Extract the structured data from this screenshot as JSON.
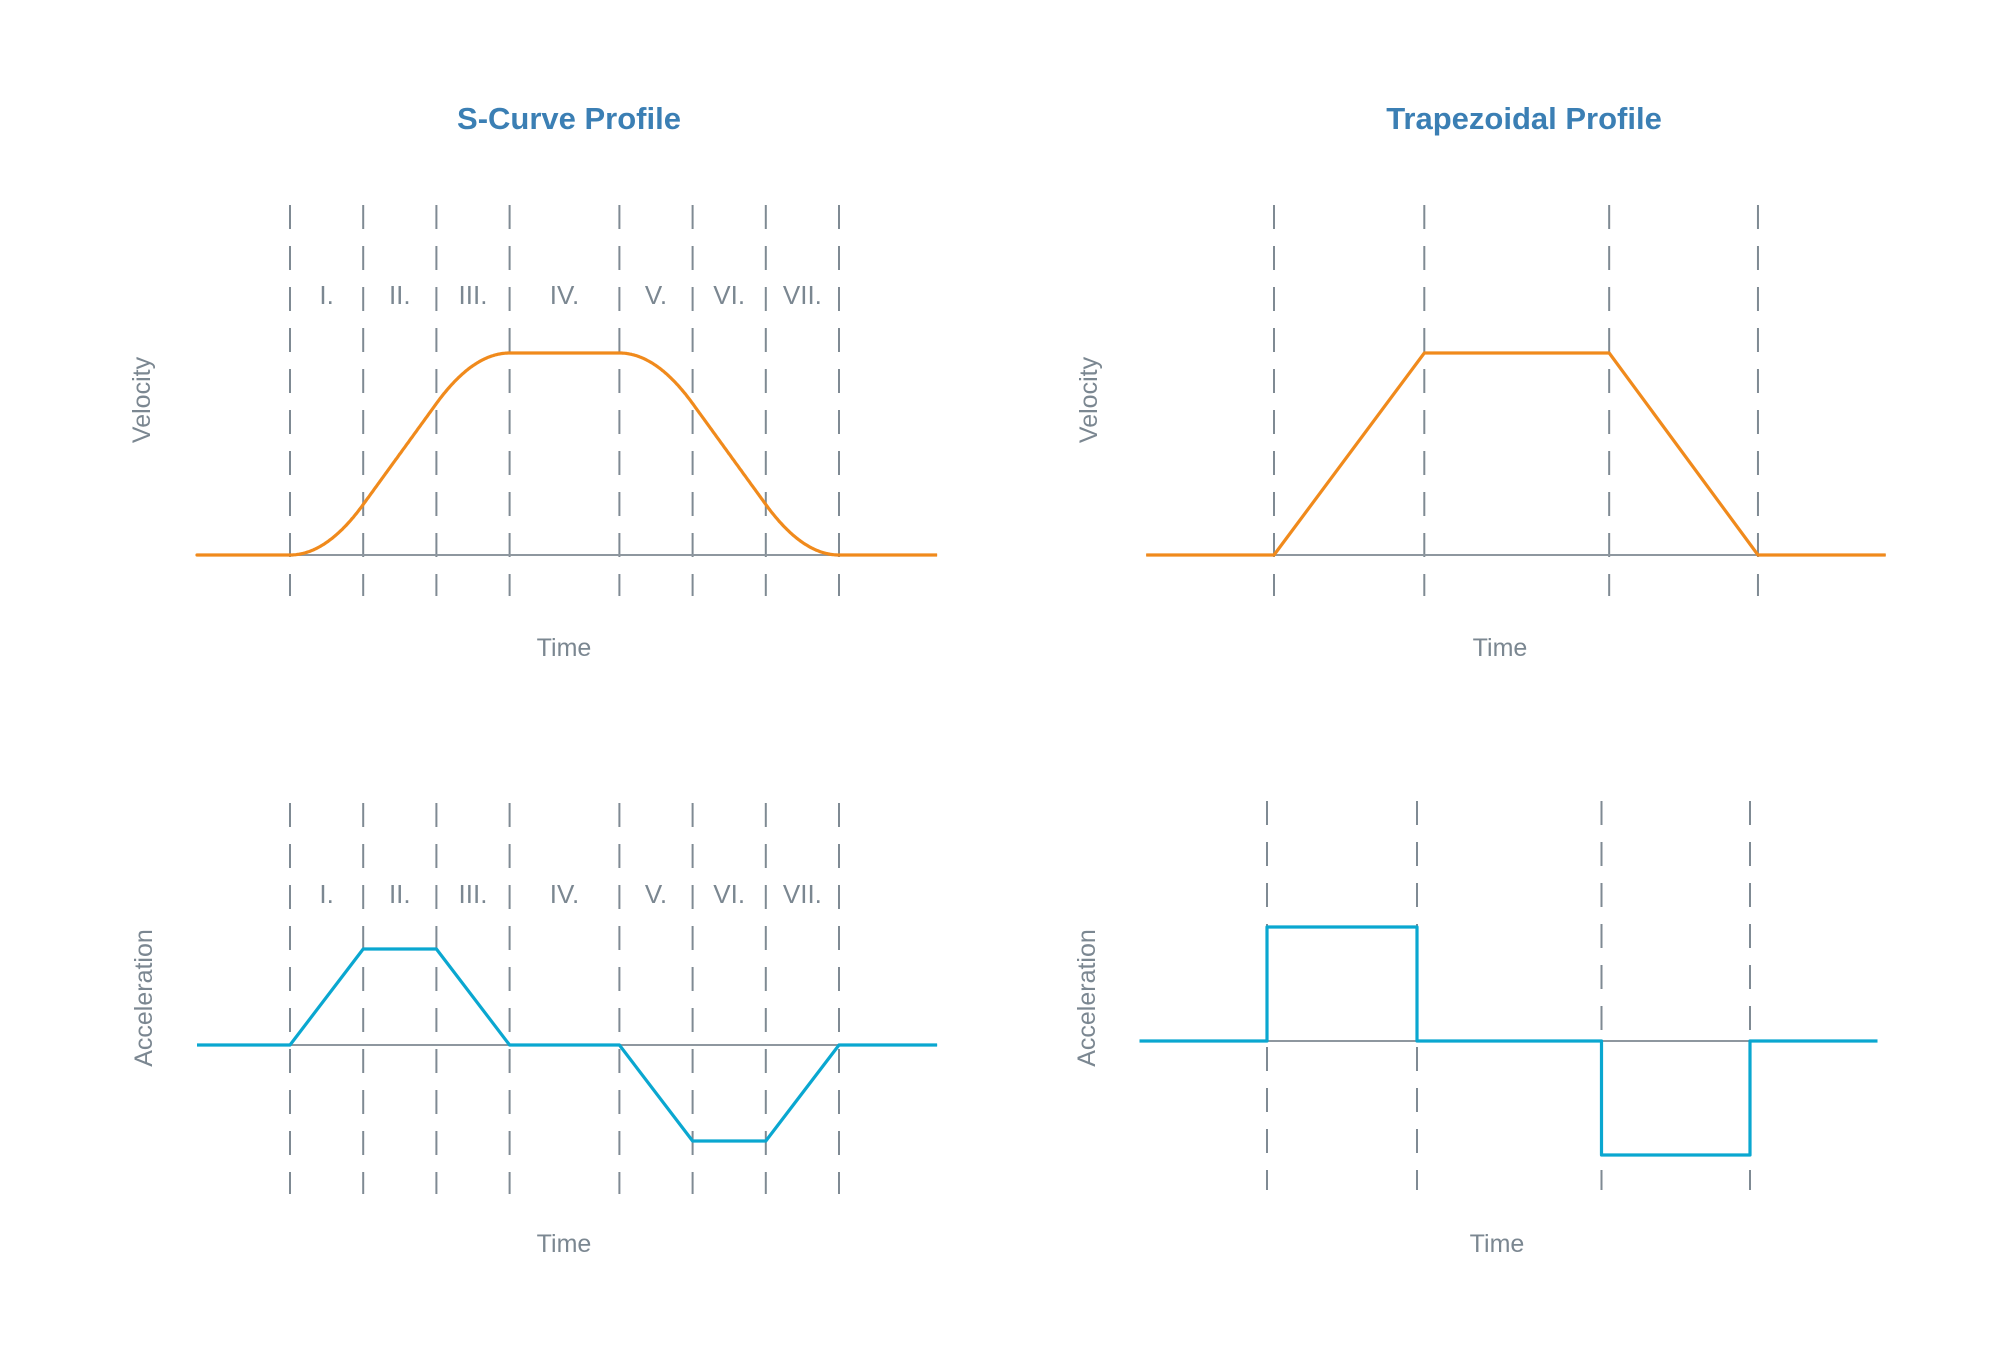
{
  "colors": {
    "title": "#3b7fb4",
    "velocity": "#f08a1c",
    "acceleration": "#0aa7d0",
    "axis": "#8e979f",
    "label": "#7b8791"
  },
  "chart_data": [
    {
      "id": "s-velocity",
      "type": "line",
      "panel_title": "S-Curve Profile",
      "xlabel": "Time",
      "ylabel": "Velocity",
      "phase_labels": [
        "I.",
        "II.",
        "III.",
        "IV.",
        "V.",
        "VI.",
        "VII."
      ],
      "phase_boundaries": [
        0,
        1,
        2,
        3,
        4.5,
        5.5,
        6.5,
        7.5
      ],
      "x_range": [
        -1.27,
        8.84
      ],
      "points": [
        [
          0,
          0
        ],
        [
          1,
          0.25
        ],
        [
          2,
          0.75
        ],
        [
          3,
          1
        ],
        [
          4.5,
          1
        ],
        [
          5.5,
          0.75
        ],
        [
          6.5,
          0.25
        ],
        [
          7.5,
          0
        ]
      ],
      "curve": "smooth (integral of acceleration)"
    },
    {
      "id": "s-acceleration",
      "type": "line",
      "xlabel": "Time",
      "ylabel": "Acceleration",
      "phase_labels": [
        "I.",
        "II.",
        "III.",
        "IV.",
        "V.",
        "VI.",
        "VII."
      ],
      "phase_boundaries": [
        0,
        1,
        2,
        3,
        4.5,
        5.5,
        6.5,
        7.5
      ],
      "x_range": [
        -1.27,
        8.84
      ],
      "points": [
        [
          -1.27,
          0
        ],
        [
          0,
          0
        ],
        [
          1,
          1
        ],
        [
          2,
          1
        ],
        [
          3,
          0
        ],
        [
          4.5,
          0
        ],
        [
          5.5,
          -1
        ],
        [
          6.5,
          -1
        ],
        [
          7.5,
          0
        ],
        [
          8.84,
          0
        ]
      ]
    },
    {
      "id": "t-velocity",
      "type": "line",
      "panel_title": "Trapezoidal Profile",
      "xlabel": "Time",
      "ylabel": "Velocity",
      "phase_boundaries": [
        0,
        1,
        2.23,
        3.22
      ],
      "x_range": [
        -0.85,
        4.07
      ],
      "points": [
        [
          -0.85,
          0
        ],
        [
          0,
          0
        ],
        [
          1,
          1
        ],
        [
          2.23,
          1
        ],
        [
          3.22,
          0
        ],
        [
          4.07,
          0
        ]
      ]
    },
    {
      "id": "t-acceleration",
      "type": "line",
      "xlabel": "Time",
      "ylabel": "Acceleration",
      "phase_boundaries": [
        0,
        1,
        2.23,
        3.22
      ],
      "x_range": [
        -0.85,
        4.07
      ],
      "points": [
        [
          -0.85,
          0
        ],
        [
          0,
          0
        ],
        [
          0,
          1
        ],
        [
          1,
          1
        ],
        [
          1,
          0
        ],
        [
          2.23,
          0
        ],
        [
          2.23,
          -1
        ],
        [
          3.22,
          -1
        ],
        [
          3.22,
          0
        ],
        [
          4.07,
          0
        ]
      ]
    }
  ]
}
